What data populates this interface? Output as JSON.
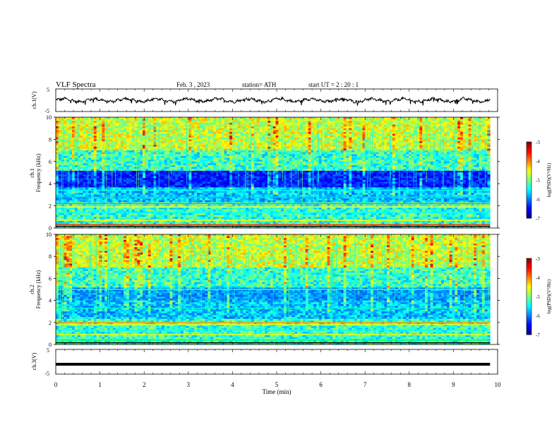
{
  "header": {
    "title": "VLF  Spectra",
    "date": "Feb. 3  , 2023",
    "station": "station= ATH",
    "start": "start  UT  =   2  : 20 : 1"
  },
  "chart_data": [
    {
      "type": "line",
      "ylabel": "ch.1(V)",
      "ylim": [
        -5,
        5
      ],
      "y_ticks": [
        "5",
        "-5"
      ],
      "xlim": [
        0,
        10
      ],
      "signal_min": 9.83,
      "description_values": {
        "mean": 0,
        "amplitude_range": [
          -1.5,
          1.5
        ]
      }
    },
    {
      "type": "heatmap",
      "ylabel_channel": "ch.1",
      "ylabel": "Frequency  (kHz)",
      "ylim": [
        0,
        10
      ],
      "y_ticks": [
        "0",
        "2",
        "4",
        "6",
        "8",
        "10"
      ],
      "xlim": [
        0,
        10
      ],
      "x_data_end": 9.83,
      "colorbar": {
        "label": "log(PSD)(V²/Hz)",
        "range": [
          -7,
          -3
        ],
        "ticks": [
          "-3",
          "-4",
          "-5",
          "-6",
          "-7"
        ]
      }
    },
    {
      "type": "heatmap",
      "ylabel_channel": "ch.2",
      "ylabel": "Frequency  (kHz)",
      "ylim": [
        0,
        10
      ],
      "y_ticks": [
        "0",
        "2",
        "4",
        "6",
        "8",
        "10"
      ],
      "xlim": [
        0,
        10
      ],
      "x_data_end": 9.83,
      "colorbar": {
        "label": "log(PSD)(V²/Hz)",
        "range": [
          -7,
          -3
        ],
        "ticks": [
          "-3",
          "-4",
          "-5",
          "-6",
          "-7"
        ]
      }
    },
    {
      "type": "line",
      "ylabel": "ch.3(V)",
      "ylim": [
        -5,
        5
      ],
      "y_ticks": [
        "5",
        "-5"
      ],
      "xlim": [
        0,
        10
      ],
      "constant_value": -1
    }
  ],
  "x_axis": {
    "xlabel": "Time  (min)",
    "ticks": [
      "0",
      "1",
      "2",
      "3",
      "4",
      "5",
      "6",
      "7",
      "8",
      "9",
      "10"
    ]
  }
}
